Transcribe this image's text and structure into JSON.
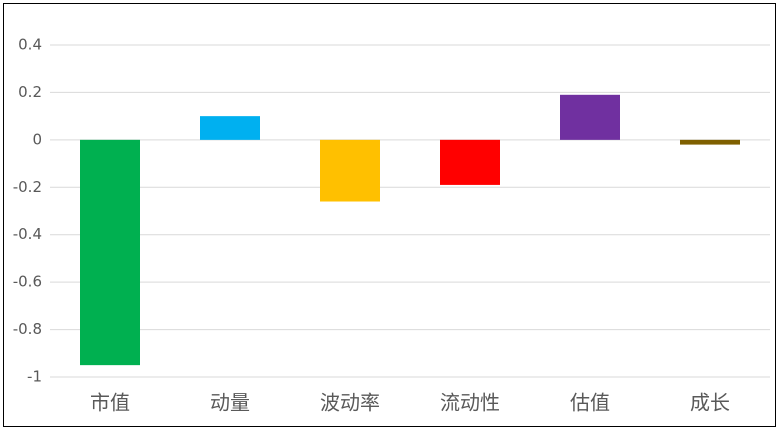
{
  "chart_data": {
    "type": "bar",
    "categories": [
      "市值",
      "动量",
      "波动率",
      "流动性",
      "估值",
      "成长"
    ],
    "values": [
      -0.95,
      0.1,
      -0.26,
      -0.19,
      0.19,
      -0.02
    ],
    "colors": [
      "#00b050",
      "#00b0f0",
      "#ffc000",
      "#ff0000",
      "#7030a0",
      "#7f6000"
    ],
    "ylim": [
      -1,
      0.4
    ],
    "yticks": [
      0.4,
      0.2,
      0,
      -0.2,
      -0.4,
      -0.6,
      -0.8,
      -1
    ],
    "grid": true
  }
}
